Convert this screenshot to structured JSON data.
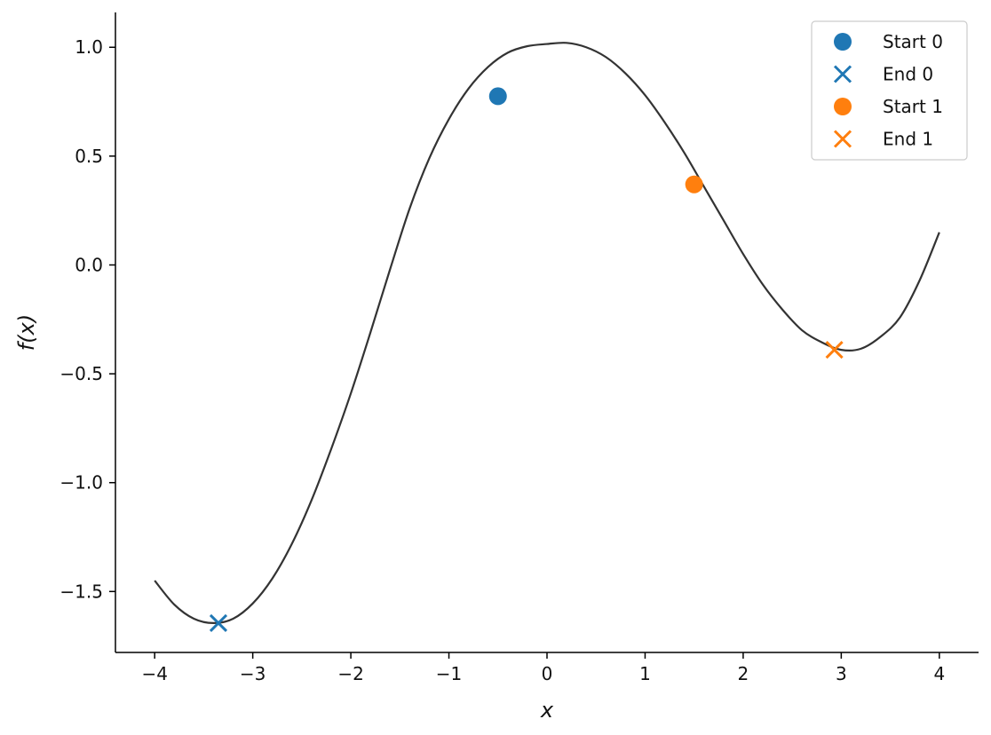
{
  "chart_data": {
    "type": "line",
    "title": "",
    "xlabel": "x",
    "ylabel": "f(x)",
    "xlim": [
      -4.4,
      4.4
    ],
    "ylim": [
      -1.78,
      1.16
    ],
    "x_ticks": [
      -4,
      -3,
      -2,
      -1,
      0,
      1,
      2,
      3,
      4
    ],
    "x_tick_labels": [
      "−4",
      "−3",
      "−2",
      "−1",
      "0",
      "1",
      "2",
      "3",
      "4"
    ],
    "y_ticks": [
      -1.5,
      -1.0,
      -0.5,
      0.0,
      0.5,
      1.0
    ],
    "y_tick_labels": [
      "−1.5",
      "−1.0",
      "−0.5",
      "0.0",
      "0.5",
      "1.0"
    ],
    "grid": false,
    "legend_position": "top-right",
    "curve": {
      "color": "#333333",
      "x": [
        -4.0,
        -3.8,
        -3.6,
        -3.4,
        -3.2,
        -3.0,
        -2.8,
        -2.6,
        -2.4,
        -2.2,
        -2.0,
        -1.8,
        -1.6,
        -1.4,
        -1.2,
        -1.0,
        -0.8,
        -0.6,
        -0.4,
        -0.2,
        0.0,
        0.2,
        0.4,
        0.6,
        0.8,
        1.0,
        1.2,
        1.4,
        1.6,
        1.8,
        2.0,
        2.2,
        2.4,
        2.6,
        2.8,
        3.0,
        3.2,
        3.4,
        3.6,
        3.8,
        4.0
      ],
      "y": [
        -1.45,
        -1.56,
        -1.625,
        -1.645,
        -1.625,
        -1.555,
        -1.44,
        -1.28,
        -1.08,
        -0.845,
        -0.59,
        -0.31,
        -0.02,
        0.26,
        0.49,
        0.67,
        0.81,
        0.91,
        0.975,
        1.005,
        1.015,
        1.02,
        1.0,
        0.955,
        0.88,
        0.78,
        0.655,
        0.515,
        0.36,
        0.205,
        0.05,
        -0.09,
        -0.205,
        -0.3,
        -0.355,
        -0.39,
        -0.385,
        -0.33,
        -0.24,
        -0.07,
        0.15
      ]
    },
    "series": [
      {
        "name": "Start 0",
        "marker": "circle",
        "color": "#1f77b4",
        "x": [
          -0.5
        ],
        "y": [
          0.775
        ]
      },
      {
        "name": "End 0",
        "marker": "x",
        "color": "#1f77b4",
        "x": [
          -3.35
        ],
        "y": [
          -1.645
        ]
      },
      {
        "name": "Start 1",
        "marker": "circle",
        "color": "#ff7f0e",
        "x": [
          1.5
        ],
        "y": [
          0.37
        ]
      },
      {
        "name": "End 1",
        "marker": "x",
        "color": "#ff7f0e",
        "x": [
          2.93
        ],
        "y": [
          -0.39
        ]
      }
    ]
  }
}
